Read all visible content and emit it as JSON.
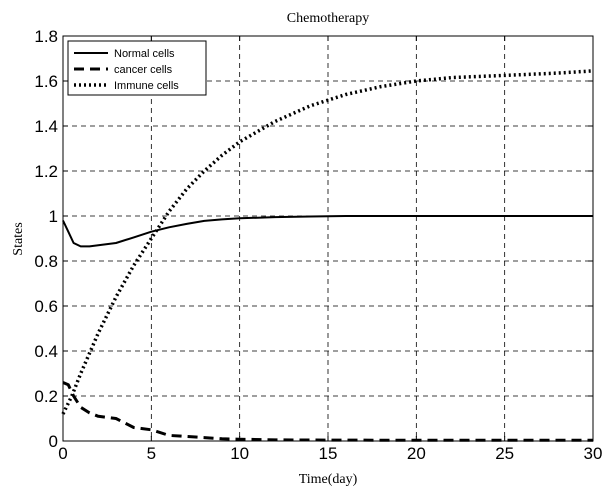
{
  "chart_data": {
    "type": "line",
    "title": "Chemotherapy",
    "xlabel": "Time(day)",
    "ylabel": "States",
    "xlim": [
      0,
      30
    ],
    "ylim": [
      0,
      1.8
    ],
    "xticks": [
      0,
      5,
      10,
      15,
      20,
      25,
      30
    ],
    "yticks": [
      0,
      0.2,
      0.4,
      0.6,
      0.8,
      1,
      1.2,
      1.4,
      1.6,
      1.8
    ],
    "xtick_labels": [
      "0",
      "5",
      "10",
      "15",
      "20",
      "25",
      "30"
    ],
    "ytick_labels": [
      "0",
      "0.2",
      "0.4",
      "0.6",
      "0.8",
      "1",
      "1.2",
      "1.4",
      "1.6",
      "1.8"
    ],
    "grid": true,
    "legend_position": "top-left",
    "series": [
      {
        "name": "Normal cells",
        "style": "solid",
        "color": "#000000",
        "x": [
          0,
          0.3,
          0.6,
          1,
          1.5,
          2,
          3,
          4,
          5,
          6,
          7,
          8,
          9,
          10,
          12,
          14,
          16,
          20,
          25,
          30
        ],
        "y": [
          0.98,
          0.93,
          0.88,
          0.865,
          0.865,
          0.87,
          0.88,
          0.905,
          0.93,
          0.95,
          0.965,
          0.978,
          0.985,
          0.99,
          0.995,
          0.998,
          1.0,
          1.0,
          1.0,
          1.0
        ]
      },
      {
        "name": "cancer cells",
        "style": "dashed",
        "color": "#000000",
        "x": [
          0,
          0.3,
          0.6,
          1,
          1.5,
          2,
          3,
          4,
          5,
          6,
          7,
          8,
          9,
          10,
          12,
          15,
          20,
          25,
          30
        ],
        "y": [
          0.26,
          0.25,
          0.2,
          0.15,
          0.125,
          0.11,
          0.1,
          0.06,
          0.05,
          0.025,
          0.02,
          0.015,
          0.01,
          0.008,
          0.005,
          0.004,
          0.003,
          0.003,
          0.003
        ]
      },
      {
        "name": "Immune cells",
        "style": "dotted",
        "color": "#000000",
        "x": [
          0,
          0.5,
          1,
          2,
          3,
          4,
          5,
          6,
          7,
          8,
          9,
          10,
          12,
          14,
          16,
          18,
          20,
          22,
          25,
          28,
          30
        ],
        "y": [
          0.12,
          0.2,
          0.3,
          0.48,
          0.64,
          0.78,
          0.9,
          1.02,
          1.12,
          1.2,
          1.27,
          1.33,
          1.42,
          1.49,
          1.54,
          1.575,
          1.6,
          1.615,
          1.625,
          1.635,
          1.645
        ]
      }
    ]
  }
}
